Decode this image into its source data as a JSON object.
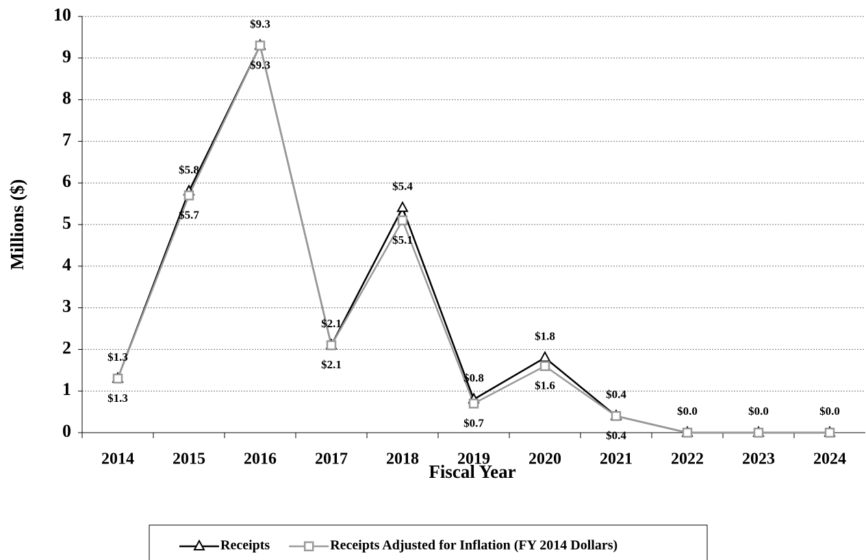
{
  "chart_data": {
    "type": "line",
    "xlabel": "Fiscal Year",
    "ylabel": "Millions ($)",
    "categories": [
      "2014",
      "2015",
      "2016",
      "2017",
      "2018",
      "2019",
      "2020",
      "2021",
      "2022",
      "2023",
      "2024"
    ],
    "series": [
      {
        "name": "Receipts",
        "color": "#000000",
        "marker": "triangle",
        "values": [
          1.3,
          5.8,
          9.3,
          2.1,
          5.4,
          0.8,
          1.8,
          0.4,
          0.0,
          0.0,
          0.0
        ],
        "value_labels": [
          "$1.3",
          "$5.8",
          "$9.3",
          "$2.1",
          "$5.4",
          "$0.8",
          "$1.8",
          "$0.4",
          "$0.0",
          "$0.0",
          "$0.0"
        ]
      },
      {
        "name": "Receipts Adjusted for Inflation (FY 2014 Dollars)",
        "color": "#999999",
        "marker": "square",
        "values": [
          1.3,
          5.7,
          9.3,
          2.1,
          5.1,
          0.7,
          1.6,
          0.4,
          0.0,
          0.0,
          0.0
        ],
        "value_labels": [
          "$1.3",
          "$5.7",
          "$9.3",
          "$2.1",
          "$5.1",
          "$0.7",
          "$1.6",
          "$0.4",
          null,
          null,
          null
        ]
      }
    ],
    "ylim": [
      0,
      10
    ],
    "yticks": [
      0,
      1,
      2,
      3,
      4,
      5,
      6,
      7,
      8,
      9,
      10
    ],
    "grid": true,
    "legend": "bottom"
  }
}
